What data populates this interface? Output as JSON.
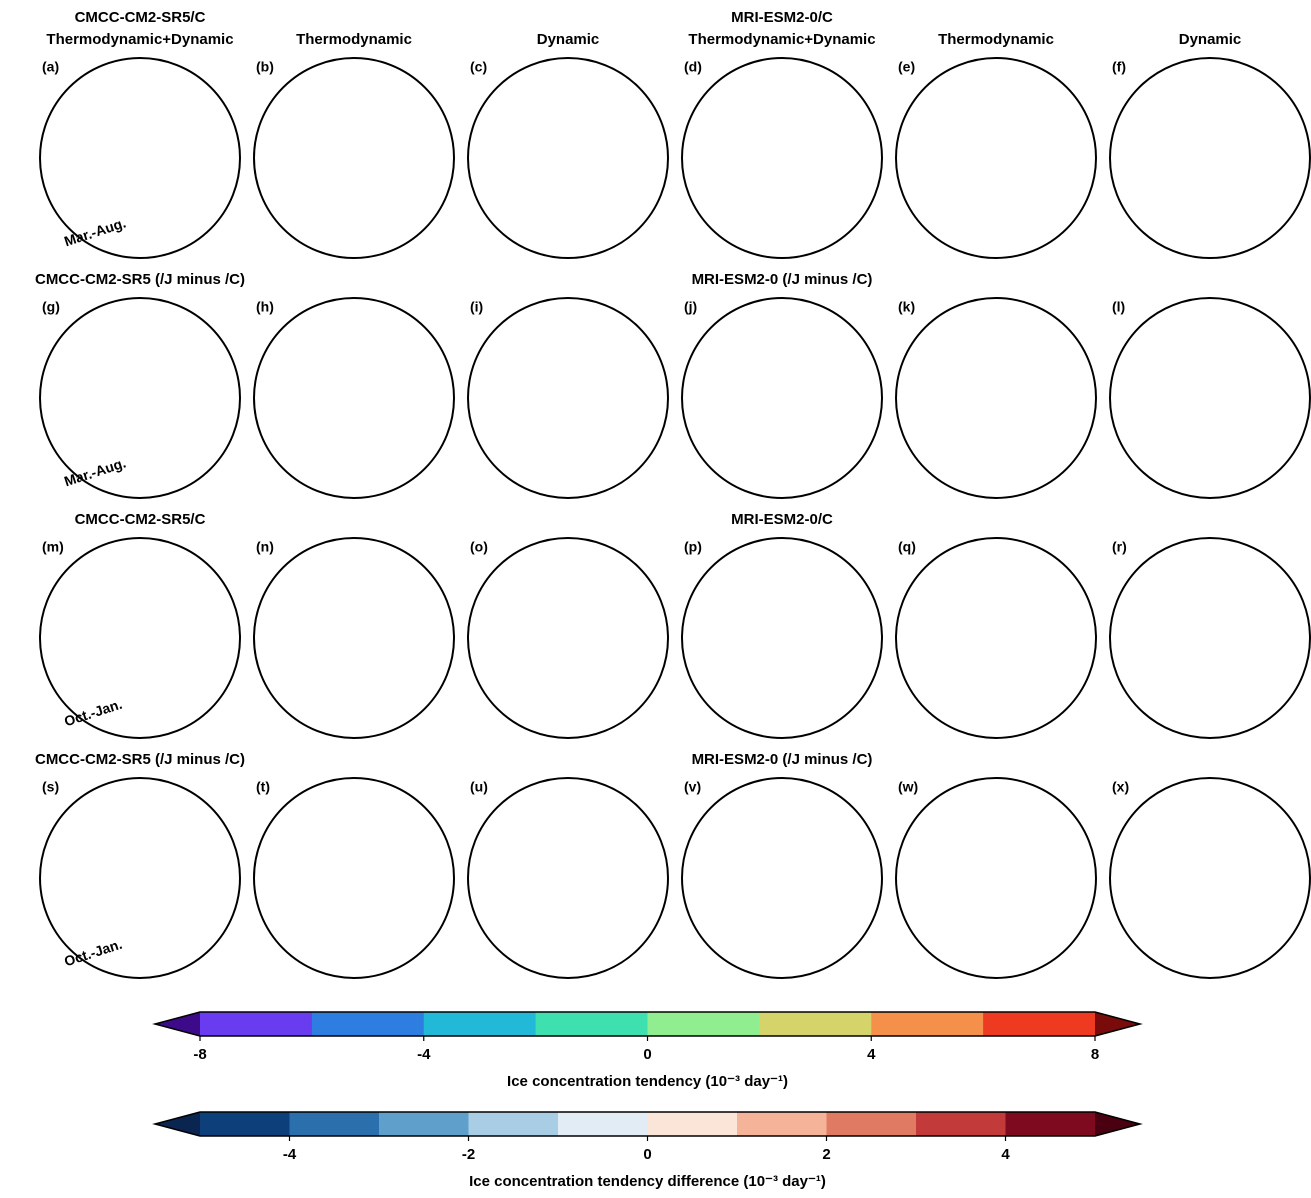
{
  "rows": [
    {
      "groups": [
        {
          "title": "CMCC-CM2-SR5/C",
          "column_titles": [
            "Thermodynamic+Dynamic",
            "Thermodynamic",
            "Dynamic"
          ],
          "panels": [
            "(a)",
            "(b)",
            "(c)"
          ]
        },
        {
          "title": "MRI-ESM2-0/C",
          "column_titles": [
            "Thermodynamic+Dynamic",
            "Thermodynamic",
            "Dynamic"
          ],
          "panels": [
            "(d)",
            "(e)",
            "(f)"
          ]
        }
      ],
      "season": "Mar.-Aug."
    },
    {
      "groups": [
        {
          "title": "CMCC-CM2-SR5 (/J minus /C)",
          "panels": [
            "(g)",
            "(h)",
            "(i)"
          ]
        },
        {
          "title": "MRI-ESM2-0 (/J minus /C)",
          "panels": [
            "(j)",
            "(k)",
            "(l)"
          ]
        }
      ],
      "season": "Mar.-Aug."
    },
    {
      "groups": [
        {
          "title": "CMCC-CM2-SR5/C",
          "panels": [
            "(m)",
            "(n)",
            "(o)"
          ]
        },
        {
          "title": "MRI-ESM2-0/C",
          "panels": [
            "(p)",
            "(q)",
            "(r)"
          ]
        }
      ],
      "season": "Oct.-Jan."
    },
    {
      "groups": [
        {
          "title": "CMCC-CM2-SR5 (/J minus /C)",
          "panels": [
            "(s)",
            "(t)",
            "(u)"
          ]
        },
        {
          "title": "MRI-ESM2-0 (/J minus /C)",
          "panels": [
            "(v)",
            "(w)",
            "(x)"
          ]
        }
      ],
      "season": "Oct.-Jan."
    }
  ],
  "colorbars": [
    {
      "label": "Ice concentration tendency (10⁻³ day⁻¹)",
      "lim": [
        -8,
        8
      ],
      "ticks": [
        -8,
        -4,
        0,
        4,
        8
      ],
      "colors": [
        "#6a3cf0",
        "#2e7de0",
        "#22b8d8",
        "#3ee0b0",
        "#90ee90",
        "#d4d46a",
        "#f5904a",
        "#ee3a20"
      ],
      "extend_colors": [
        "#3d0b8a",
        "#7a0b0b"
      ]
    },
    {
      "label": "Ice concentration tendency difference (10⁻³ day⁻¹)",
      "lim": [
        -5,
        5
      ],
      "ticks": [
        -4,
        -2,
        0,
        2,
        4
      ],
      "colors": [
        "#0d3f7a",
        "#2c6fad",
        "#5f9fcc",
        "#a9cde4",
        "#e2ecf4",
        "#fbe4d8",
        "#f5b49a",
        "#e07a62",
        "#c33a3a",
        "#7d0a1f"
      ],
      "extend_colors": [
        "#0a2550",
        "#4a0010"
      ]
    }
  ]
}
